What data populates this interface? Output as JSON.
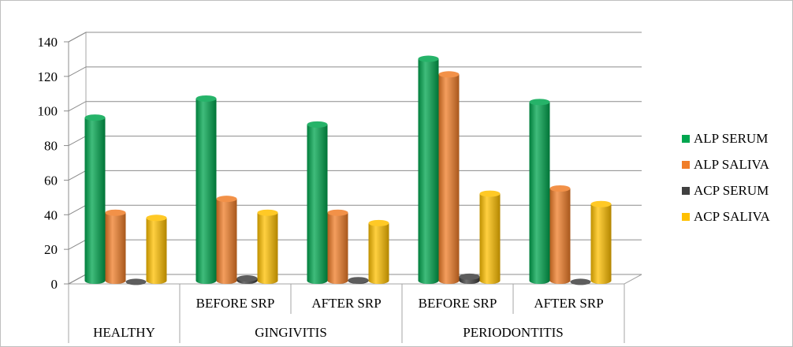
{
  "chart_data": {
    "type": "bar",
    "title": "",
    "xlabel": "",
    "ylabel": "",
    "ylim": [
      0,
      140
    ],
    "yticks": [
      0,
      20,
      40,
      60,
      80,
      100,
      120,
      140
    ],
    "grid": true,
    "legend_position": "right",
    "groups": [
      {
        "label": "HEALTHY",
        "categories": [
          ""
        ]
      },
      {
        "label": "GINGIVITIS",
        "categories": [
          "BEFORE SRP",
          "AFTER SRP"
        ]
      },
      {
        "label": "PERIODONTITIS",
        "categories": [
          "BEFORE SRP",
          "AFTER SRP"
        ]
      }
    ],
    "series": [
      {
        "name": "ALP SERUM",
        "color": "#00a64f",
        "values": [
          98,
          109,
          94,
          132,
          107
        ]
      },
      {
        "name": "ALP SALIVA",
        "color": "#f07d28",
        "values": [
          43,
          51,
          43,
          123,
          57
        ]
      },
      {
        "name": "ACP SERUM",
        "color": "#404040",
        "values": [
          3,
          5,
          4,
          6,
          3
        ]
      },
      {
        "name": "ACP SALIVA",
        "color": "#ffc000",
        "values": [
          40,
          43,
          37,
          54,
          48
        ]
      }
    ]
  }
}
